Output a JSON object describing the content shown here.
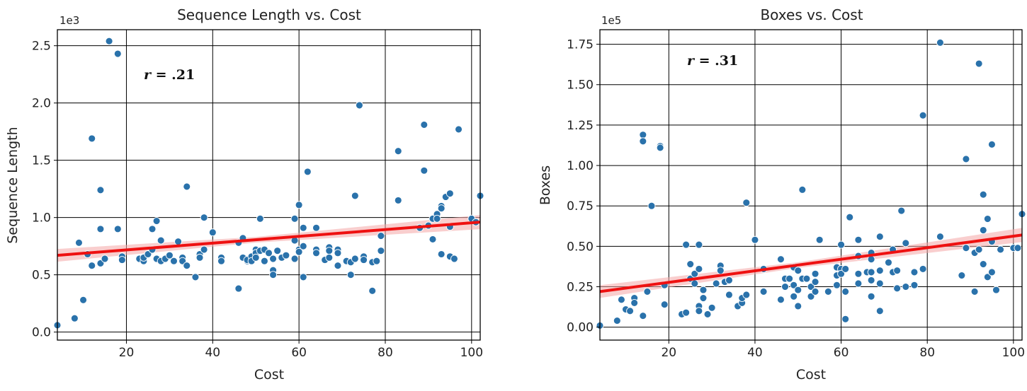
{
  "chart_data": [
    {
      "type": "scatter",
      "title": "Sequence Length vs. Cost",
      "xlabel": "Cost",
      "ylabel": "Sequence Length",
      "y_offset_label": "1e3",
      "xlim": [
        4,
        102
      ],
      "ylim": [
        -0.07,
        2.64
      ],
      "xticks": [
        20,
        40,
        60,
        80,
        100
      ],
      "yticks": [
        0.0,
        0.5,
        1.0,
        1.5,
        2.0,
        2.5
      ],
      "ytick_labels": [
        "0.0",
        "0.5",
        "1.0",
        "1.5",
        "2.0",
        "2.5"
      ],
      "grid": true,
      "annotation_var": "r",
      "annotation_value": " = .21",
      "point_color": "#2a72ab",
      "line_color": "#ee1111",
      "regression": {
        "x": [
          4,
          102
        ],
        "y": [
          0.67,
          0.96
        ]
      },
      "points": [
        [
          4,
          0.06
        ],
        [
          8,
          0.12
        ],
        [
          9,
          0.78
        ],
        [
          10,
          0.28
        ],
        [
          11,
          0.68
        ],
        [
          12,
          1.69
        ],
        [
          12,
          0.58
        ],
        [
          14,
          1.24
        ],
        [
          14,
          0.9
        ],
        [
          14,
          0.6
        ],
        [
          15,
          0.64
        ],
        [
          16,
          2.54
        ],
        [
          18,
          2.43
        ],
        [
          18,
          0.9
        ],
        [
          19,
          0.66
        ],
        [
          19,
          0.63
        ],
        [
          23,
          0.64
        ],
        [
          24,
          0.62
        ],
        [
          24,
          0.65
        ],
        [
          25,
          0.68
        ],
        [
          26,
          0.9
        ],
        [
          26,
          0.72
        ],
        [
          27,
          0.97
        ],
        [
          27,
          0.64
        ],
        [
          28,
          0.62
        ],
        [
          28,
          0.8
        ],
        [
          29,
          0.64
        ],
        [
          30,
          0.67
        ],
        [
          31,
          0.62
        ],
        [
          32,
          0.79
        ],
        [
          33,
          0.65
        ],
        [
          33,
          0.62
        ],
        [
          34,
          1.27
        ],
        [
          34,
          0.58
        ],
        [
          36,
          0.48
        ],
        [
          37,
          0.68
        ],
        [
          37,
          0.65
        ],
        [
          38,
          1.0
        ],
        [
          38,
          0.72
        ],
        [
          40,
          0.87
        ],
        [
          42,
          0.65
        ],
        [
          42,
          0.62
        ],
        [
          46,
          0.78
        ],
        [
          46,
          0.38
        ],
        [
          47,
          0.82
        ],
        [
          47,
          0.65
        ],
        [
          48,
          0.62
        ],
        [
          48,
          0.63
        ],
        [
          49,
          0.66
        ],
        [
          49,
          0.62
        ],
        [
          50,
          0.72
        ],
        [
          50,
          0.69
        ],
        [
          50,
          0.65
        ],
        [
          51,
          0.99
        ],
        [
          51,
          0.71
        ],
        [
          52,
          0.72
        ],
        [
          52,
          0.62
        ],
        [
          53,
          0.69
        ],
        [
          54,
          0.54
        ],
        [
          54,
          0.5
        ],
        [
          54,
          0.64
        ],
        [
          55,
          0.71
        ],
        [
          56,
          0.65
        ],
        [
          57,
          0.67
        ],
        [
          59,
          0.99
        ],
        [
          59,
          0.8
        ],
        [
          59,
          0.64
        ],
        [
          60,
          1.11
        ],
        [
          60,
          0.72
        ],
        [
          60,
          0.7
        ],
        [
          61,
          0.91
        ],
        [
          61,
          0.75
        ],
        [
          61,
          0.48
        ],
        [
          62,
          1.4
        ],
        [
          64,
          0.91
        ],
        [
          64,
          0.72
        ],
        [
          64,
          0.69
        ],
        [
          66,
          0.63
        ],
        [
          67,
          0.74
        ],
        [
          67,
          0.71
        ],
        [
          67,
          0.65
        ],
        [
          69,
          0.72
        ],
        [
          69,
          0.69
        ],
        [
          69,
          0.58
        ],
        [
          71,
          0.62
        ],
        [
          72,
          0.61
        ],
        [
          72,
          0.5
        ],
        [
          73,
          1.19
        ],
        [
          73,
          0.64
        ],
        [
          74,
          1.98
        ],
        [
          75,
          0.66
        ],
        [
          75,
          0.63
        ],
        [
          77,
          0.36
        ],
        [
          77,
          0.61
        ],
        [
          78,
          0.62
        ],
        [
          79,
          0.84
        ],
        [
          79,
          0.71
        ],
        [
          83,
          1.58
        ],
        [
          83,
          1.15
        ],
        [
          88,
          0.91
        ],
        [
          89,
          1.81
        ],
        [
          89,
          1.41
        ],
        [
          90,
          0.93
        ],
        [
          91,
          0.99
        ],
        [
          91,
          0.81
        ],
        [
          92,
          1.03
        ],
        [
          92,
          0.99
        ],
        [
          93,
          1.1
        ],
        [
          93,
          1.08
        ],
        [
          93,
          0.68
        ],
        [
          94,
          1.18
        ],
        [
          95,
          1.21
        ],
        [
          95,
          0.92
        ],
        [
          95,
          0.66
        ],
        [
          96,
          0.64
        ],
        [
          97,
          1.77
        ],
        [
          100,
          0.99
        ],
        [
          101,
          0.96
        ],
        [
          102,
          1.19
        ]
      ]
    },
    {
      "type": "scatter",
      "title": "Boxes vs. Cost",
      "xlabel": "Cost",
      "ylabel": "Boxes",
      "y_offset_label": "1e5",
      "xlim": [
        4,
        102
      ],
      "ylim": [
        -0.08,
        1.84
      ],
      "xticks": [
        20,
        40,
        60,
        80,
        100
      ],
      "yticks": [
        0.0,
        0.25,
        0.5,
        0.75,
        1.0,
        1.25,
        1.5,
        1.75
      ],
      "ytick_labels": [
        "0.00",
        "0.25",
        "0.50",
        "0.75",
        "1.00",
        "1.25",
        "1.50",
        "1.75"
      ],
      "grid": true,
      "annotation_var": "r",
      "annotation_value": " = .31",
      "point_color": "#2a72ab",
      "line_color": "#ee1111",
      "regression": {
        "x": [
          4,
          102
        ],
        "y": [
          0.22,
          0.57
        ]
      },
      "points": [
        [
          4,
          0.01
        ],
        [
          8,
          0.04
        ],
        [
          9,
          0.17
        ],
        [
          10,
          0.11
        ],
        [
          11,
          0.1
        ],
        [
          12,
          0.18
        ],
        [
          12,
          0.15
        ],
        [
          14,
          1.19
        ],
        [
          14,
          1.15
        ],
        [
          14,
          0.07
        ],
        [
          15,
          0.22
        ],
        [
          16,
          0.75
        ],
        [
          18,
          1.12
        ],
        [
          18,
          1.11
        ],
        [
          19,
          0.14
        ],
        [
          19,
          0.26
        ],
        [
          23,
          0.08
        ],
        [
          24,
          0.51
        ],
        [
          24,
          0.09
        ],
        [
          25,
          0.39
        ],
        [
          25,
          0.3
        ],
        [
          26,
          0.33
        ],
        [
          26,
          0.27
        ],
        [
          27,
          0.51
        ],
        [
          27,
          0.36
        ],
        [
          27,
          0.13
        ],
        [
          27,
          0.1
        ],
        [
          28,
          0.23
        ],
        [
          28,
          0.18
        ],
        [
          29,
          0.08
        ],
        [
          30,
          0.12
        ],
        [
          31,
          0.27
        ],
        [
          32,
          0.38
        ],
        [
          32,
          0.35
        ],
        [
          33,
          0.28
        ],
        [
          34,
          0.29
        ],
        [
          34,
          0.2
        ],
        [
          36,
          0.13
        ],
        [
          37,
          0.15
        ],
        [
          37,
          0.18
        ],
        [
          38,
          0.77
        ],
        [
          38,
          0.2
        ],
        [
          40,
          0.54
        ],
        [
          42,
          0.36
        ],
        [
          42,
          0.22
        ],
        [
          46,
          0.42
        ],
        [
          46,
          0.17
        ],
        [
          47,
          0.3
        ],
        [
          47,
          0.25
        ],
        [
          48,
          0.3
        ],
        [
          49,
          0.37
        ],
        [
          49,
          0.26
        ],
        [
          49,
          0.19
        ],
        [
          50,
          0.35
        ],
        [
          50,
          0.13
        ],
        [
          50,
          0.23
        ],
        [
          51,
          0.85
        ],
        [
          51,
          0.3
        ],
        [
          52,
          0.3
        ],
        [
          53,
          0.25
        ],
        [
          53,
          0.19
        ],
        [
          54,
          0.33
        ],
        [
          54,
          0.28
        ],
        [
          54,
          0.22
        ],
        [
          55,
          0.54
        ],
        [
          57,
          0.22
        ],
        [
          59,
          0.37
        ],
        [
          59,
          0.32
        ],
        [
          59,
          0.26
        ],
        [
          60,
          0.51
        ],
        [
          60,
          0.36
        ],
        [
          60,
          0.33
        ],
        [
          61,
          0.36
        ],
        [
          61,
          0.05
        ],
        [
          61,
          0.22
        ],
        [
          62,
          0.68
        ],
        [
          64,
          0.54
        ],
        [
          64,
          0.44
        ],
        [
          64,
          0.33
        ],
        [
          64,
          0.27
        ],
        [
          66,
          0.34
        ],
        [
          67,
          0.46
        ],
        [
          67,
          0.42
        ],
        [
          67,
          0.34
        ],
        [
          67,
          0.29
        ],
        [
          67,
          0.19
        ],
        [
          69,
          0.56
        ],
        [
          69,
          0.35
        ],
        [
          69,
          0.27
        ],
        [
          69,
          0.1
        ],
        [
          71,
          0.4
        ],
        [
          72,
          0.48
        ],
        [
          72,
          0.34
        ],
        [
          73,
          0.24
        ],
        [
          73,
          0.35
        ],
        [
          74,
          0.72
        ],
        [
          75,
          0.52
        ],
        [
          75,
          0.25
        ],
        [
          77,
          0.34
        ],
        [
          77,
          0.26
        ],
        [
          79,
          1.31
        ],
        [
          79,
          0.36
        ],
        [
          83,
          1.76
        ],
        [
          83,
          0.56
        ],
        [
          88,
          0.32
        ],
        [
          89,
          1.04
        ],
        [
          89,
          0.49
        ],
        [
          91,
          0.22
        ],
        [
          91,
          0.46
        ],
        [
          92,
          1.63
        ],
        [
          92,
          0.48
        ],
        [
          93,
          0.82
        ],
        [
          93,
          0.6
        ],
        [
          93,
          0.39
        ],
        [
          94,
          0.67
        ],
        [
          94,
          0.31
        ],
        [
          95,
          1.13
        ],
        [
          95,
          0.53
        ],
        [
          95,
          0.34
        ],
        [
          96,
          0.23
        ],
        [
          97,
          0.48
        ],
        [
          100,
          0.49
        ],
        [
          101,
          0.49
        ],
        [
          102,
          0.7
        ]
      ]
    }
  ]
}
